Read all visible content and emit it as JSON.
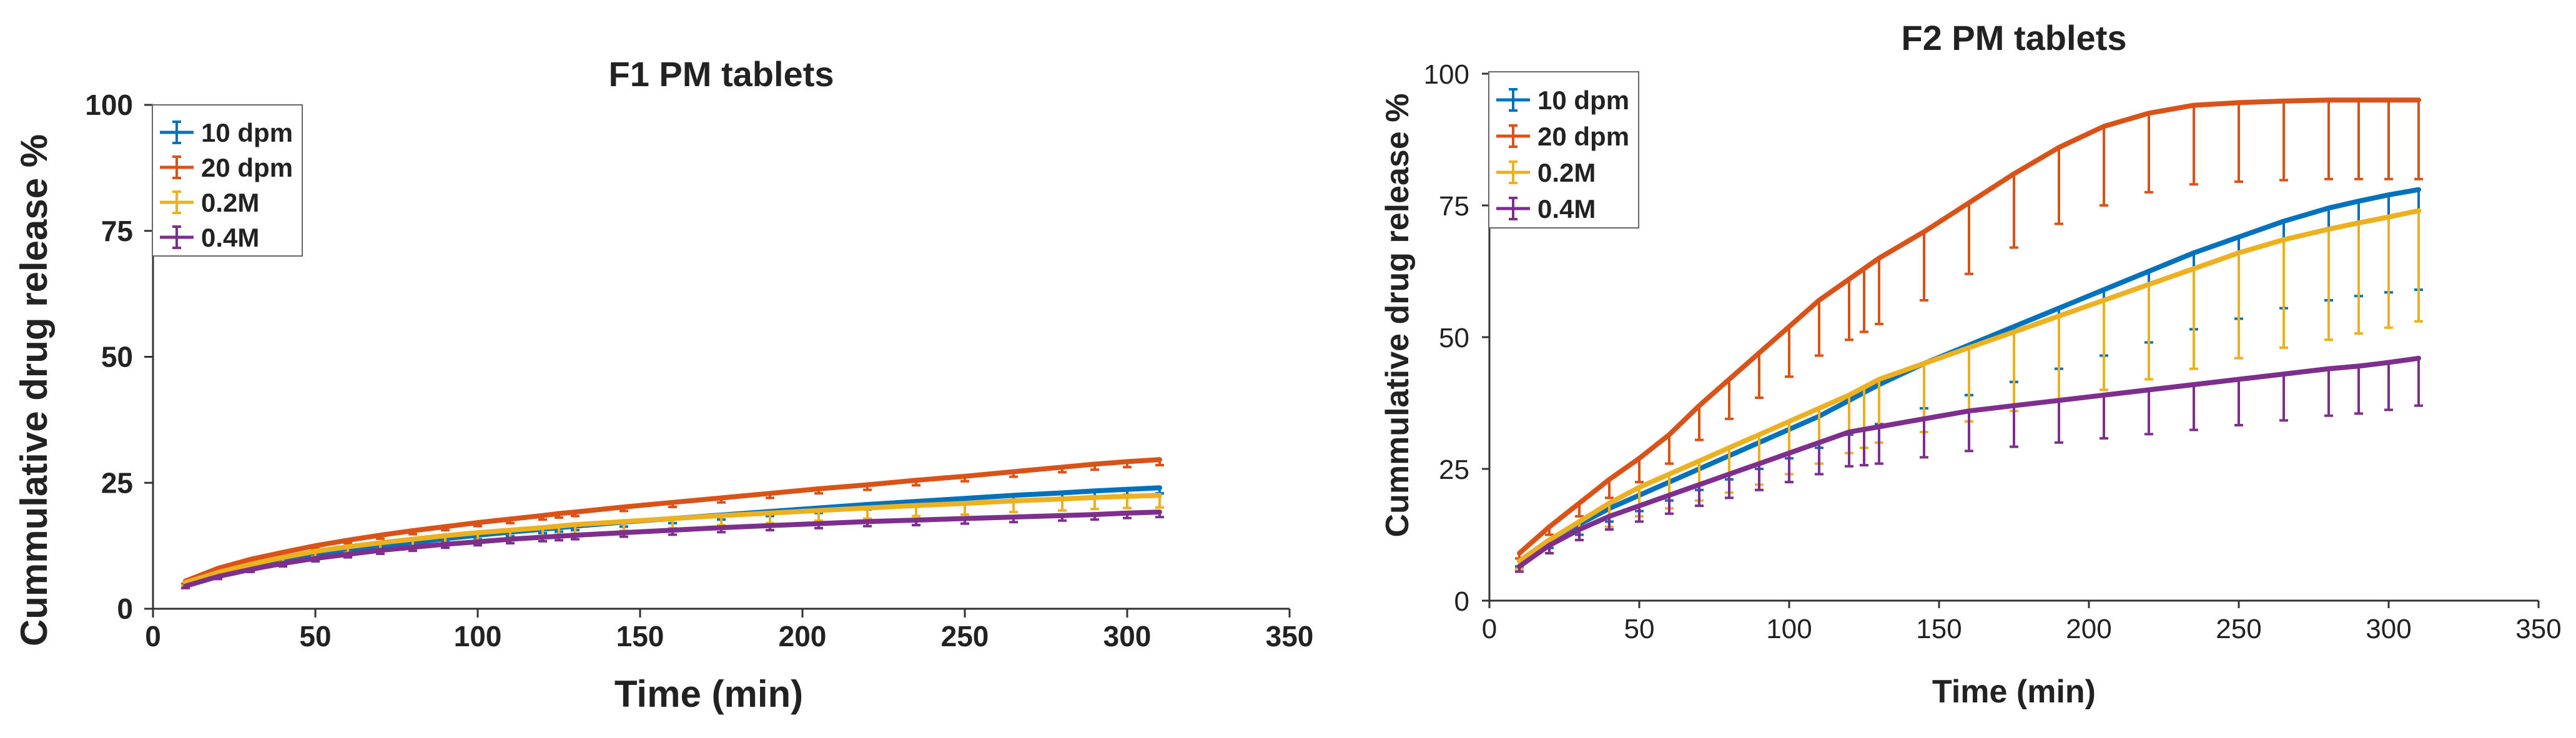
{
  "chart_data": [
    {
      "id": "f1",
      "type": "line",
      "title": "F1 PM tablets",
      "xlabel": "Time (min)",
      "ylabel": "Cummulative drug release %",
      "xlim": [
        0,
        350
      ],
      "ylim": [
        0,
        100
      ],
      "xticks": [
        0,
        50,
        100,
        150,
        200,
        250,
        300,
        350
      ],
      "yticks": [
        0,
        25,
        50,
        75,
        100
      ],
      "error_direction": "down",
      "legend_position": "top-left",
      "x": [
        10,
        20,
        30,
        40,
        50,
        60,
        70,
        80,
        90,
        100,
        110,
        120,
        125,
        130,
        145,
        160,
        175,
        190,
        205,
        220,
        235,
        250,
        265,
        280,
        290,
        300,
        310
      ],
      "series": [
        {
          "name": "10 dpm",
          "color": "#0072BD",
          "values": [
            5,
            6.8,
            8.2,
            9.5,
            10.5,
            11.4,
            12.3,
            13.1,
            13.9,
            14.6,
            15.2,
            15.8,
            16.1,
            16.4,
            17.2,
            17.9,
            18.6,
            19.3,
            20,
            20.7,
            21.3,
            21.9,
            22.5,
            23,
            23.4,
            23.7,
            24
          ],
          "errors": [
            0.5,
            0.5,
            0.6,
            0.6,
            0.6,
            0.7,
            0.7,
            0.7,
            0.7,
            0.8,
            0.8,
            0.8,
            0.8,
            0.8,
            0.9,
            0.9,
            0.9,
            0.9,
            1,
            1,
            1,
            1,
            1,
            1.1,
            1.1,
            1.1,
            1.1
          ]
        },
        {
          "name": "20 dpm",
          "color": "#D95319",
          "values": [
            5.5,
            8,
            9.8,
            11.2,
            12.5,
            13.6,
            14.6,
            15.5,
            16.3,
            17.1,
            17.8,
            18.5,
            18.9,
            19.2,
            20.2,
            21.1,
            22,
            22.9,
            23.8,
            24.6,
            25.5,
            26.3,
            27.2,
            28.1,
            28.7,
            29.2,
            29.6
          ],
          "errors": [
            0.5,
            0.5,
            0.6,
            0.6,
            0.6,
            0.6,
            0.7,
            0.7,
            0.7,
            0.7,
            0.8,
            0.8,
            0.8,
            0.8,
            0.8,
            0.9,
            0.9,
            0.9,
            0.9,
            1,
            1,
            1,
            1,
            1,
            1.1,
            1.1,
            1.1
          ]
        },
        {
          "name": "0.2M",
          "color": "#EDB120",
          "values": [
            5.2,
            7.2,
            8.8,
            10.2,
            11.4,
            12.3,
            13.1,
            13.8,
            14.5,
            15.1,
            15.6,
            16.1,
            16.4,
            16.7,
            17.3,
            17.9,
            18.5,
            19,
            19.5,
            20,
            20.5,
            20.9,
            21.4,
            21.8,
            22.1,
            22.3,
            22.5
          ],
          "errors": [
            0.6,
            0.8,
            0.9,
            1,
            1.1,
            1.2,
            1.3,
            1.4,
            1.5,
            1.5,
            1.6,
            1.7,
            1.7,
            1.8,
            1.8,
            1.9,
            1.9,
            2,
            2,
            2.1,
            2.1,
            2.2,
            2.2,
            2.3,
            2.3,
            2.3,
            2.4
          ]
        },
        {
          "name": "0.4M",
          "color": "#7E2F8E",
          "values": [
            4.5,
            6.4,
            7.8,
            9,
            10,
            10.8,
            11.6,
            12.2,
            12.8,
            13.3,
            13.8,
            14.2,
            14.4,
            14.6,
            15.1,
            15.6,
            16.1,
            16.5,
            16.9,
            17.3,
            17.6,
            17.9,
            18.2,
            18.5,
            18.7,
            19,
            19.2
          ],
          "errors": [
            0.4,
            0.5,
            0.5,
            0.6,
            0.6,
            0.6,
            0.7,
            0.7,
            0.7,
            0.7,
            0.8,
            0.8,
            0.8,
            0.8,
            0.8,
            0.9,
            0.9,
            0.9,
            0.9,
            0.9,
            1,
            1,
            1,
            1,
            1,
            1,
            1
          ]
        }
      ]
    },
    {
      "id": "f2",
      "type": "line",
      "title": "F2 PM tablets",
      "xlabel": "Time (min)",
      "ylabel": "Cummulative drug release %",
      "xlim": [
        0,
        350
      ],
      "ylim": [
        0,
        100
      ],
      "xticks": [
        0,
        50,
        100,
        150,
        200,
        250,
        300,
        350
      ],
      "yticks": [
        0,
        25,
        50,
        75,
        100
      ],
      "error_direction": "down",
      "legend_position": "top-left",
      "x": [
        10,
        20,
        30,
        40,
        50,
        60,
        70,
        80,
        90,
        100,
        110,
        120,
        125,
        130,
        145,
        160,
        175,
        190,
        205,
        220,
        235,
        250,
        265,
        280,
        290,
        300,
        310
      ],
      "series": [
        {
          "name": "10 dpm",
          "color": "#0072BD",
          "values": [
            7.5,
            11.5,
            14.5,
            17.5,
            20,
            22.5,
            25,
            27.5,
            30,
            32.5,
            35,
            38,
            39.5,
            41,
            45,
            48.5,
            52,
            55.5,
            59,
            62.5,
            66,
            69,
            72,
            74.5,
            75.8,
            77,
            78
          ],
          "errors": [
            1,
            1.5,
            2,
            2.5,
            3,
            3.5,
            4,
            4.5,
            5,
            5.5,
            6,
            6.5,
            7,
            7.5,
            8.5,
            9.5,
            10.5,
            11.5,
            12.5,
            13.5,
            14.5,
            15.5,
            16.5,
            17.5,
            18,
            18.5,
            19
          ]
        },
        {
          "name": "20 dpm",
          "color": "#D95319",
          "values": [
            9,
            14,
            18.5,
            23,
            27,
            31.5,
            37,
            42,
            47,
            52,
            57,
            61,
            63,
            65,
            70,
            75.5,
            81,
            86,
            90,
            92.5,
            94,
            94.5,
            94.8,
            95,
            95,
            95,
            95
          ],
          "errors": [
            1,
            1.5,
            2.5,
            3.5,
            4.5,
            5.5,
            6.5,
            7.5,
            8.5,
            9.5,
            10.5,
            11.5,
            12,
            12.5,
            13,
            13.5,
            14,
            14.5,
            15,
            15,
            15,
            15,
            15,
            15,
            15,
            15,
            15
          ]
        },
        {
          "name": "0.2M",
          "color": "#EDB120",
          "values": [
            7.5,
            11.5,
            15,
            18.5,
            21.5,
            24,
            26.5,
            29,
            31.5,
            34,
            36.5,
            39,
            40.5,
            42,
            45,
            48,
            51,
            54,
            57,
            60,
            63,
            66,
            68.5,
            70.5,
            71.7,
            72.8,
            74
          ],
          "errors": [
            1.5,
            2.5,
            3.5,
            4.5,
            5.5,
            6.5,
            7.5,
            8.5,
            9.5,
            10,
            10.5,
            11,
            11.5,
            12,
            13,
            14,
            15,
            16,
            17,
            18,
            19,
            20,
            20.5,
            21,
            21,
            21,
            21
          ]
        },
        {
          "name": "0.4M",
          "color": "#7E2F8E",
          "values": [
            6.5,
            10.5,
            13.5,
            16,
            18,
            20,
            22,
            24,
            26,
            28,
            30,
            32,
            32.5,
            33,
            34.5,
            36,
            37,
            38,
            39,
            40,
            41,
            42,
            43,
            44,
            44.5,
            45.2,
            46
          ],
          "errors": [
            1,
            1.5,
            2,
            2.5,
            3,
            3.5,
            4,
            4.5,
            5,
            5.5,
            6,
            6.5,
            6.8,
            7,
            7.3,
            7.6,
            7.8,
            8,
            8.2,
            8.4,
            8.6,
            8.7,
            8.8,
            8.9,
            9,
            9,
            9
          ]
        }
      ]
    }
  ]
}
